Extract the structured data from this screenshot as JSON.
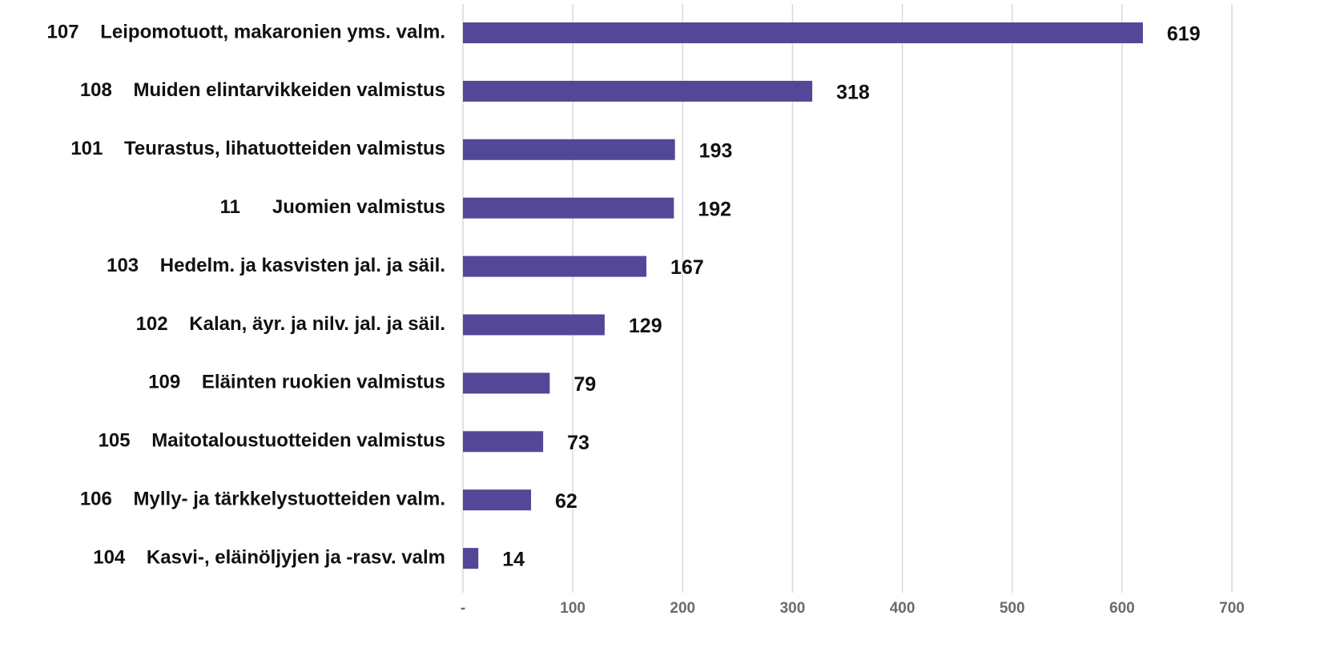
{
  "chart_data": {
    "type": "bar",
    "orientation": "horizontal",
    "categories": [
      "107    Leipomotuott, makaronien yms. valm.",
      "108    Muiden elintarvikkeiden valmistus",
      "101    Teurastus, lihatuotteiden valmistus",
      "11      Juomien valmistus",
      "103    Hedelm. ja kasvisten jal. ja säil.",
      "102    Kalan, äyr. ja nilv. jal. ja säil.",
      "109    Eläinten ruokien valmistus",
      "105    Maitotaloustuotteiden valmistus",
      "106    Mylly- ja tärkkelystuotteiden valm.",
      "104    Kasvi-, eläinöljyjen ja -rasv. valm"
    ],
    "values": [
      619,
      318,
      193,
      192,
      167,
      129,
      79,
      73,
      62,
      14
    ],
    "color": "#534797",
    "xlim": [
      0,
      700
    ],
    "xticks": [
      {
        "value": 0,
        "label": "-"
      },
      100,
      200,
      300,
      400,
      500,
      600,
      700
    ],
    "grid": true
  }
}
